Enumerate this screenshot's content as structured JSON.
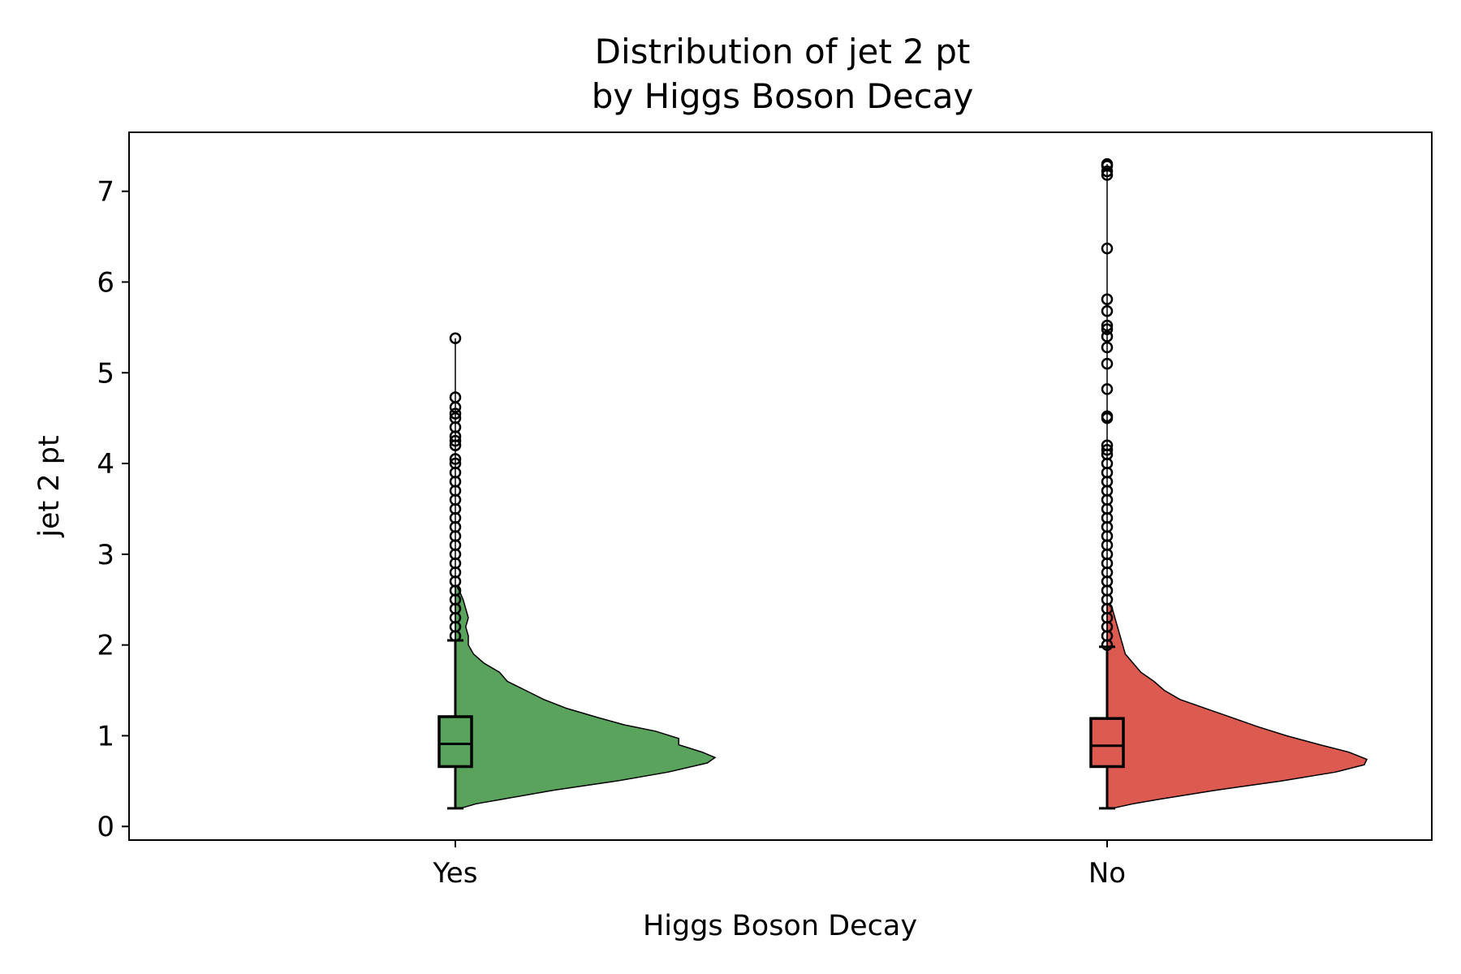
{
  "chart_data": {
    "type": "violin",
    "title_lines": [
      "Distribution of jet 2 pt",
      "by Higgs Boson Decay"
    ],
    "xlabel": "Higgs Boson Decay",
    "ylabel": "jet 2 pt",
    "categories": [
      "Yes",
      "No"
    ],
    "ylim": [
      -0.15,
      7.65
    ],
    "yticks": [
      "0",
      "1",
      "2",
      "3",
      "4",
      "5",
      "6",
      "7"
    ],
    "grid": false,
    "series": [
      {
        "color": "#59a35c",
        "box": {
          "whisker_low": 0.2,
          "q1": 0.66,
          "median": 0.91,
          "q3": 1.21,
          "whisker_high": 2.05
        },
        "outliers": [
          2.1,
          2.2,
          2.3,
          2.4,
          2.5,
          2.6,
          2.7,
          2.8,
          2.9,
          3.0,
          3.1,
          3.2,
          3.3,
          3.4,
          3.5,
          3.6,
          3.7,
          3.8,
          3.9,
          4.0,
          4.05,
          4.2,
          4.25,
          4.3,
          4.4,
          4.5,
          4.55,
          4.62,
          4.73,
          5.38
        ],
        "density": [
          [
            0.2,
            0.02
          ],
          [
            0.25,
            0.08
          ],
          [
            0.3,
            0.18
          ],
          [
            0.4,
            0.38
          ],
          [
            0.5,
            0.62
          ],
          [
            0.6,
            0.82
          ],
          [
            0.7,
            0.97
          ],
          [
            0.76,
            1.0
          ],
          [
            0.82,
            0.95
          ],
          [
            0.9,
            0.86
          ],
          [
            0.97,
            0.86
          ],
          [
            1.05,
            0.77
          ],
          [
            1.12,
            0.65
          ],
          [
            1.2,
            0.55
          ],
          [
            1.3,
            0.43
          ],
          [
            1.4,
            0.34
          ],
          [
            1.5,
            0.27
          ],
          [
            1.6,
            0.2
          ],
          [
            1.7,
            0.17
          ],
          [
            1.8,
            0.11
          ],
          [
            1.9,
            0.07
          ],
          [
            2.0,
            0.05
          ],
          [
            2.1,
            0.05
          ],
          [
            2.2,
            0.04
          ],
          [
            2.3,
            0.05
          ],
          [
            2.4,
            0.04
          ],
          [
            2.5,
            0.03
          ],
          [
            2.6,
            0.015
          ],
          [
            2.65,
            0.005
          ]
        ]
      },
      {
        "color": "#dc5a50",
        "box": {
          "whisker_low": 0.2,
          "q1": 0.66,
          "median": 0.89,
          "q3": 1.19,
          "whisker_high": 1.98
        },
        "outliers": [
          2.0,
          2.1,
          2.2,
          2.3,
          2.4,
          2.5,
          2.6,
          2.7,
          2.8,
          2.9,
          3.0,
          3.1,
          3.2,
          3.3,
          3.4,
          3.5,
          3.6,
          3.7,
          3.8,
          3.9,
          4.0,
          4.1,
          4.15,
          4.2,
          4.5,
          4.52,
          4.82,
          5.1,
          5.28,
          5.4,
          5.48,
          5.52,
          5.68,
          5.81,
          6.37,
          7.18,
          7.22,
          7.28,
          7.3
        ],
        "density": [
          [
            0.2,
            0.02
          ],
          [
            0.25,
            0.1
          ],
          [
            0.3,
            0.2
          ],
          [
            0.4,
            0.42
          ],
          [
            0.5,
            0.67
          ],
          [
            0.6,
            0.88
          ],
          [
            0.68,
            0.99
          ],
          [
            0.74,
            1.0
          ],
          [
            0.82,
            0.93
          ],
          [
            0.9,
            0.82
          ],
          [
            1.0,
            0.69
          ],
          [
            1.1,
            0.58
          ],
          [
            1.2,
            0.48
          ],
          [
            1.3,
            0.38
          ],
          [
            1.4,
            0.28
          ],
          [
            1.5,
            0.22
          ],
          [
            1.6,
            0.18
          ],
          [
            1.7,
            0.13
          ],
          [
            1.8,
            0.1
          ],
          [
            1.9,
            0.07
          ],
          [
            2.0,
            0.06
          ],
          [
            2.1,
            0.05
          ],
          [
            2.2,
            0.04
          ],
          [
            2.3,
            0.03
          ],
          [
            2.4,
            0.02
          ],
          [
            2.45,
            0.005
          ]
        ]
      }
    ]
  }
}
